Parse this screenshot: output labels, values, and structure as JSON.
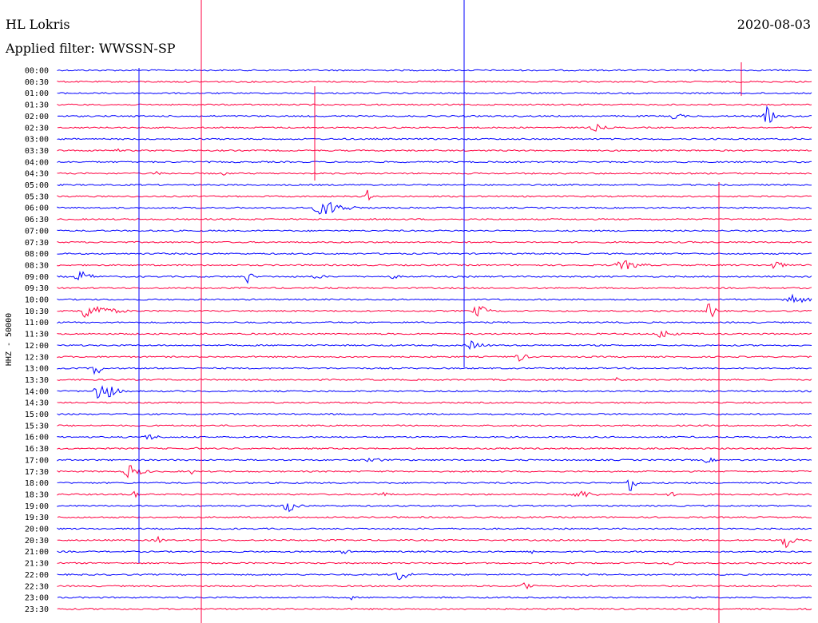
{
  "header": {
    "station": "HL Lokris",
    "date": "2020-08-03",
    "filter_text": "Applied filter: WWSSN-SP"
  },
  "colors": {
    "blue": "#0000ff",
    "red": "#ff0040"
  },
  "chart_data": {
    "type": "line",
    "ylabel": "HHZ - 50000",
    "rows": [
      {
        "label": "00:00",
        "events": []
      },
      {
        "label": "00:30",
        "events": []
      },
      {
        "label": "01:00",
        "events": []
      },
      {
        "label": "01:30",
        "events": []
      },
      {
        "label": "02:00",
        "events": [
          {
            "at": 845,
            "amp": 11,
            "w": 18
          },
          {
            "at": 960,
            "amp": 14,
            "w": 22
          }
        ]
      },
      {
        "label": "02:30",
        "events": [
          {
            "at": 745,
            "amp": 5,
            "w": 40
          }
        ]
      },
      {
        "label": "03:00",
        "events": []
      },
      {
        "label": "03:30",
        "events": [
          {
            "at": 145,
            "amp": 3,
            "w": 25
          }
        ]
      },
      {
        "label": "04:00",
        "events": []
      },
      {
        "label": "04:30",
        "events": [
          {
            "at": 195,
            "amp": 3,
            "w": 30
          },
          {
            "at": 280,
            "amp": 4,
            "w": 12
          }
        ]
      },
      {
        "label": "05:00",
        "events": []
      },
      {
        "label": "05:30",
        "events": [
          {
            "at": 460,
            "amp": 8,
            "w": 12
          }
        ]
      },
      {
        "label": "06:00",
        "events": [
          {
            "at": 405,
            "amp": 12,
            "w": 65
          }
        ]
      },
      {
        "label": "06:30",
        "events": []
      },
      {
        "label": "07:00",
        "events": []
      },
      {
        "label": "07:30",
        "events": []
      },
      {
        "label": "08:00",
        "events": []
      },
      {
        "label": "08:30",
        "events": [
          {
            "at": 780,
            "amp": 7,
            "w": 60
          },
          {
            "at": 970,
            "amp": 8,
            "w": 25
          }
        ]
      },
      {
        "label": "09:00",
        "events": [
          {
            "at": 100,
            "amp": 8,
            "w": 40
          },
          {
            "at": 310,
            "amp": 11,
            "w": 15
          },
          {
            "at": 395,
            "amp": 3,
            "w": 50
          },
          {
            "at": 492,
            "amp": 4,
            "w": 20
          }
        ]
      },
      {
        "label": "09:30",
        "events": []
      },
      {
        "label": "10:00",
        "events": [
          {
            "at": 990,
            "amp": 8,
            "w": 50
          }
        ]
      },
      {
        "label": "10:30",
        "events": [
          {
            "at": 110,
            "amp": 12,
            "w": 70
          },
          {
            "at": 598,
            "amp": 10,
            "w": 30
          },
          {
            "at": 888,
            "amp": 14,
            "w": 20
          }
        ]
      },
      {
        "label": "11:00",
        "events": []
      },
      {
        "label": "11:30",
        "events": [
          {
            "at": 828,
            "amp": 7,
            "w": 40
          }
        ]
      },
      {
        "label": "12:00",
        "events": [
          {
            "at": 590,
            "amp": 6,
            "w": 45
          }
        ]
      },
      {
        "label": "12:30",
        "events": [
          {
            "at": 650,
            "amp": 7,
            "w": 25
          }
        ]
      },
      {
        "label": "13:00",
        "events": [
          {
            "at": 120,
            "amp": 12,
            "w": 20
          }
        ]
      },
      {
        "label": "13:30",
        "events": [
          {
            "at": 772,
            "amp": 4,
            "w": 6
          }
        ]
      },
      {
        "label": "14:00",
        "events": [
          {
            "at": 125,
            "amp": 22,
            "w": 35
          }
        ]
      },
      {
        "label": "14:30",
        "events": []
      },
      {
        "label": "15:00",
        "events": []
      },
      {
        "label": "15:30",
        "events": []
      },
      {
        "label": "16:00",
        "events": [
          {
            "at": 185,
            "amp": 4,
            "w": 55
          }
        ]
      },
      {
        "label": "16:30",
        "events": [
          {
            "at": 245,
            "amp": 4,
            "w": 6
          }
        ]
      },
      {
        "label": "17:00",
        "events": [
          {
            "at": 465,
            "amp": 5,
            "w": 35
          },
          {
            "at": 885,
            "amp": 4,
            "w": 30
          }
        ]
      },
      {
        "label": "17:30",
        "events": [
          {
            "at": 162,
            "amp": 10,
            "w": 40
          },
          {
            "at": 238,
            "amp": 7,
            "w": 10
          }
        ]
      },
      {
        "label": "18:00",
        "events": [
          {
            "at": 788,
            "amp": 14,
            "w": 20
          }
        ]
      },
      {
        "label": "18:30",
        "events": [
          {
            "at": 168,
            "amp": 9,
            "w": 12
          },
          {
            "at": 475,
            "amp": 4,
            "w": 40
          },
          {
            "at": 725,
            "amp": 6,
            "w": 55
          },
          {
            "at": 840,
            "amp": 3,
            "w": 40
          }
        ]
      },
      {
        "label": "19:00",
        "events": [
          {
            "at": 360,
            "amp": 9,
            "w": 35
          }
        ]
      },
      {
        "label": "19:30",
        "events": []
      },
      {
        "label": "20:00",
        "events": []
      },
      {
        "label": "20:30",
        "events": [
          {
            "at": 197,
            "amp": 5,
            "w": 25
          },
          {
            "at": 983,
            "amp": 14,
            "w": 22
          }
        ]
      },
      {
        "label": "21:00",
        "events": [
          {
            "at": 430,
            "amp": 3,
            "w": 35
          },
          {
            "at": 666,
            "amp": 5,
            "w": 6
          }
        ]
      },
      {
        "label": "21:30",
        "events": [
          {
            "at": 840,
            "amp": 3,
            "w": 40
          }
        ]
      },
      {
        "label": "22:00",
        "events": [
          {
            "at": 500,
            "amp": 8,
            "w": 40
          }
        ]
      },
      {
        "label": "22:30",
        "events": [
          {
            "at": 655,
            "amp": 9,
            "w": 25
          }
        ]
      },
      {
        "label": "23:00",
        "events": [
          {
            "at": 440,
            "amp": 3,
            "w": 8
          }
        ]
      },
      {
        "label": "23:30",
        "events": []
      }
    ],
    "grid": false,
    "legend": "none"
  }
}
